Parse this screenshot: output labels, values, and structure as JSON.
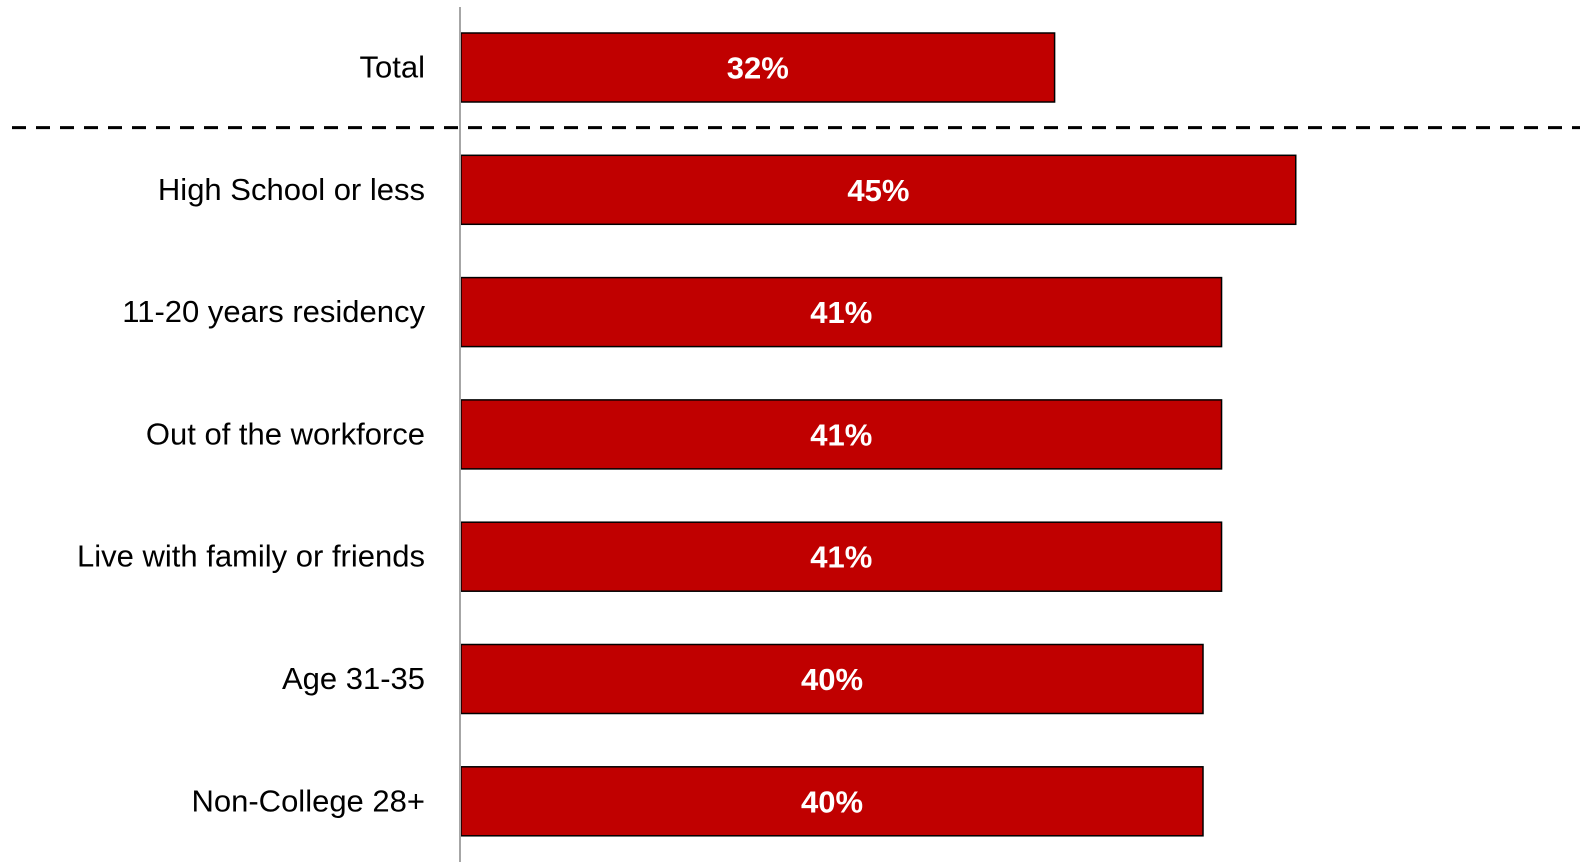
{
  "chart_data": {
    "type": "bar",
    "orientation": "horizontal",
    "categories": [
      "Total",
      "High School or less",
      "11-20 years residency",
      "Out of the workforce",
      "Live with family or friends",
      "Age 31-35",
      "Non-College 28+"
    ],
    "values": [
      32,
      45,
      41,
      41,
      41,
      40,
      40
    ],
    "value_labels": [
      "32%",
      "45%",
      "41%",
      "41%",
      "41%",
      "40%",
      "40%"
    ],
    "title": "",
    "xlabel": "",
    "ylabel": "",
    "xlim": [
      0,
      45.5
    ],
    "grid": false,
    "legend": "none",
    "separator_after_index": 0,
    "colors": {
      "bar_fill": "#c00000",
      "bar_stroke": "#000000",
      "axis": "#a6a6a6",
      "separator": "#000000",
      "value_text": "#ffffff",
      "category_text": "#000000"
    }
  }
}
